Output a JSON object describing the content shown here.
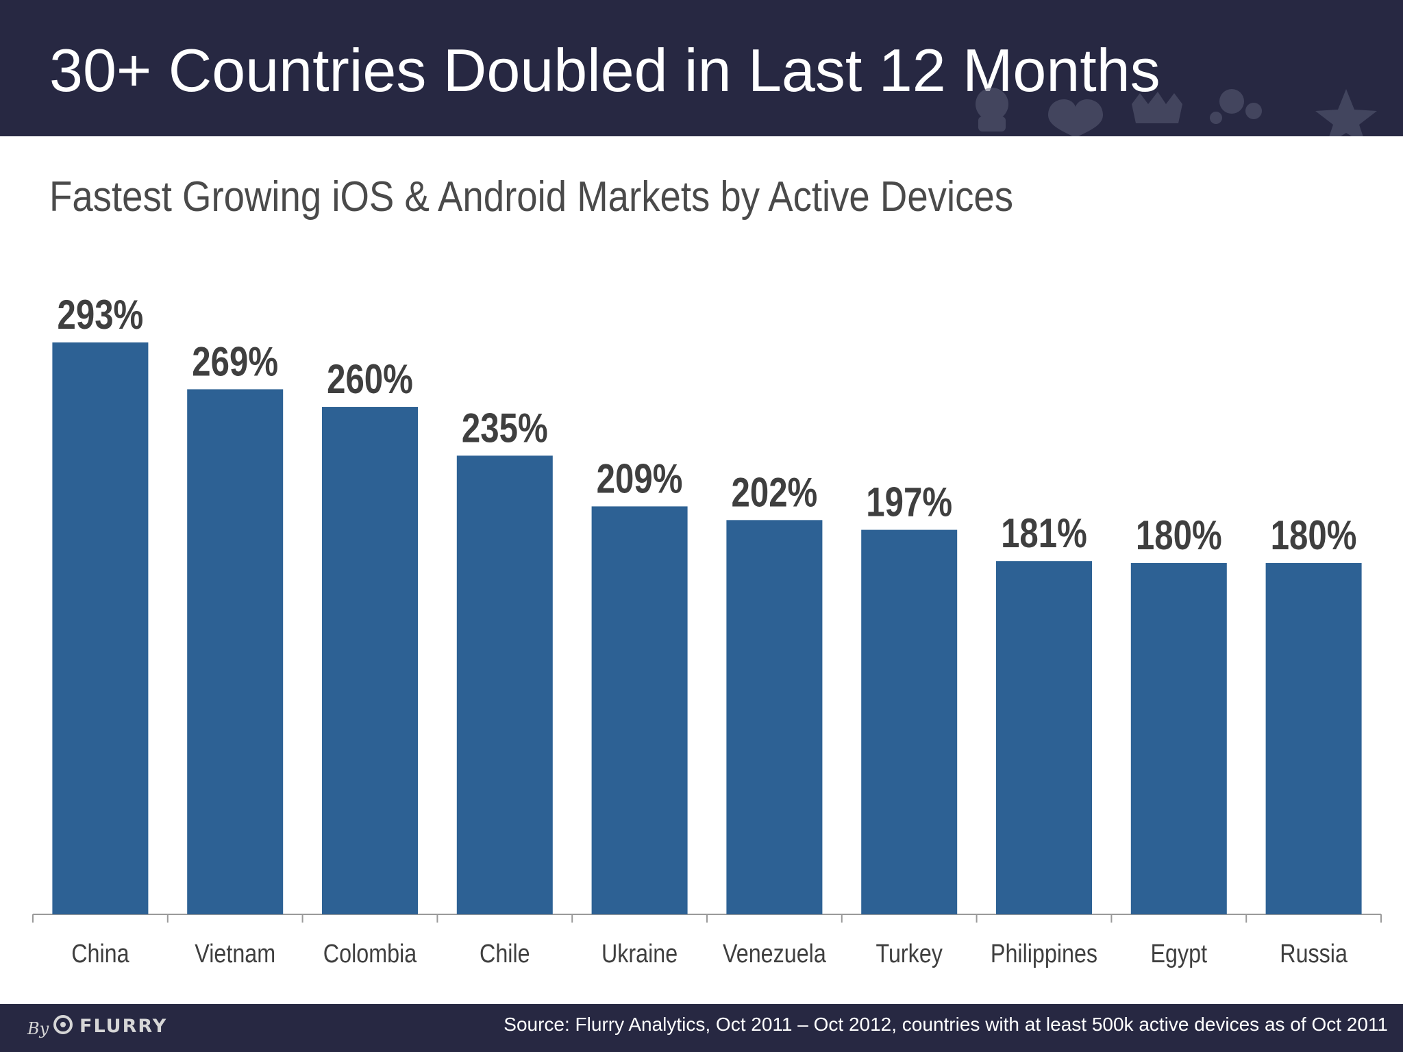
{
  "slide": {
    "title": "30+ Countries Doubled in Last 12 Months",
    "subtitle": "Fastest Growing iOS & Android Markets by Active Devices"
  },
  "footer": {
    "by": "By",
    "brand": "FLURRY",
    "source": "Source: Flurry Analytics, Oct 2011 – Oct 2012, countries with at least 500k active devices as of Oct 2011"
  },
  "colors": {
    "header_bg": "#272842",
    "bar": "#2d6194",
    "label": "#3f3f3f",
    "axis": "#9a9a9a"
  },
  "chart_data": {
    "type": "bar",
    "title": "",
    "xlabel": "",
    "ylabel": "",
    "categories": [
      "China",
      "Vietnam",
      "Colombia",
      "Chile",
      "Ukraine",
      "Venezuela",
      "Turkey",
      "Philippines",
      "Egypt",
      "Russia"
    ],
    "values": [
      293,
      269,
      260,
      235,
      209,
      202,
      197,
      181,
      180,
      180
    ],
    "data_labels": [
      "293%",
      "269%",
      "260%",
      "235%",
      "209%",
      "202%",
      "197%",
      "181%",
      "180%",
      "180%"
    ],
    "ylim": [
      0,
      293
    ],
    "grid": false,
    "legend": "none"
  }
}
